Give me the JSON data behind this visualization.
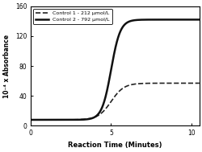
{
  "title": "",
  "xlabel": "Reaction Time (Minutes)",
  "ylabel": "10⁻⁴ x Absorbance",
  "xlim": [
    0,
    10.5
  ],
  "ylim": [
    0,
    160
  ],
  "yticks": [
    0,
    40,
    80,
    120,
    160
  ],
  "xticks": [
    0,
    5,
    10
  ],
  "legend": [
    {
      "label": "Control 1 - 212 μmol/L",
      "linestyle": "--",
      "color": "#222222",
      "linewidth": 1.2
    },
    {
      "label": "Control 2 - 792 μmol/L",
      "linestyle": "-",
      "color": "#111111",
      "linewidth": 1.8
    }
  ],
  "background_color": "#ffffff",
  "control1_baseline": 8,
  "control1_plateau": 57,
  "control2_baseline": 8,
  "control2_plateau": 142,
  "transition_start": 5.0,
  "c2_steepness": 3.5,
  "c1_steepness": 2.5
}
